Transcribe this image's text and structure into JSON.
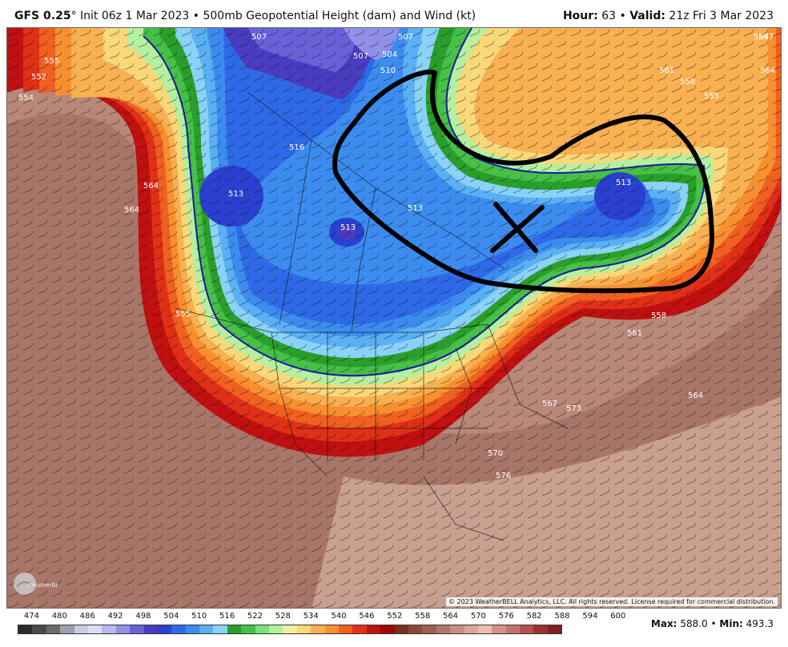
{
  "header": {
    "model": "GFS 0.25",
    "degree": "°",
    "init": "Init 06z 1 Mar 2023",
    "bullet": "•",
    "product": "500mb Geopotential Height (dam) and Wind (kt)",
    "hour_label": "Hour:",
    "hour_value": "63",
    "valid_label": "Valid:",
    "valid_value": "21z Fri 3 Mar 2023"
  },
  "map": {
    "contour_labels": [
      "507",
      "507",
      "507",
      "504",
      "510",
      "513",
      "513",
      "513",
      "513",
      "516",
      "564",
      "564",
      "561",
      "558",
      "555",
      "567",
      "555",
      "558",
      "561",
      "567",
      "573",
      "570",
      "576",
      "564",
      "567",
      "554",
      "552",
      "555",
      "564"
    ],
    "annotation": "hand-drawn trough outline with X marking low center",
    "copyright": "© 2023 WeatherBELL Analytics, LLC. All rights reserved. License required for commercial distribution.",
    "logo_text": "WeatherBELL"
  },
  "legend": {
    "labels": [
      "474",
      "480",
      "486",
      "492",
      "498",
      "504",
      "510",
      "516",
      "522",
      "528",
      "534",
      "540",
      "546",
      "552",
      "558",
      "564",
      "570",
      "576",
      "582",
      "588",
      "594",
      "600"
    ],
    "colors": [
      "#2a2a2a",
      "#4a4a4a",
      "#6a6a6a",
      "#9aa0b0",
      "#c8cce0",
      "#dcdcf4",
      "#b8b8f0",
      "#9090e8",
      "#6a60d8",
      "#4a3cc0",
      "#2a40d0",
      "#2e6ae8",
      "#3c8cf0",
      "#5ab0f4",
      "#8ad2f8",
      "#2a9e2a",
      "#46c046",
      "#7ae07a",
      "#b4f0a0",
      "#f0f0a0",
      "#f8d878",
      "#f8b050",
      "#f89030",
      "#f06020",
      "#e03018",
      "#c01010",
      "#9e0808",
      "#7a3020",
      "#8a4a3a",
      "#9a6050",
      "#b07868",
      "#c89080",
      "#d8a898",
      "#e8c0b0",
      "#d89088",
      "#c87070",
      "#b85050",
      "#a03030",
      "#802020"
    ],
    "max_label": "Max:",
    "max_value": "588.0",
    "min_label": "Min:",
    "min_value": "493.3"
  }
}
